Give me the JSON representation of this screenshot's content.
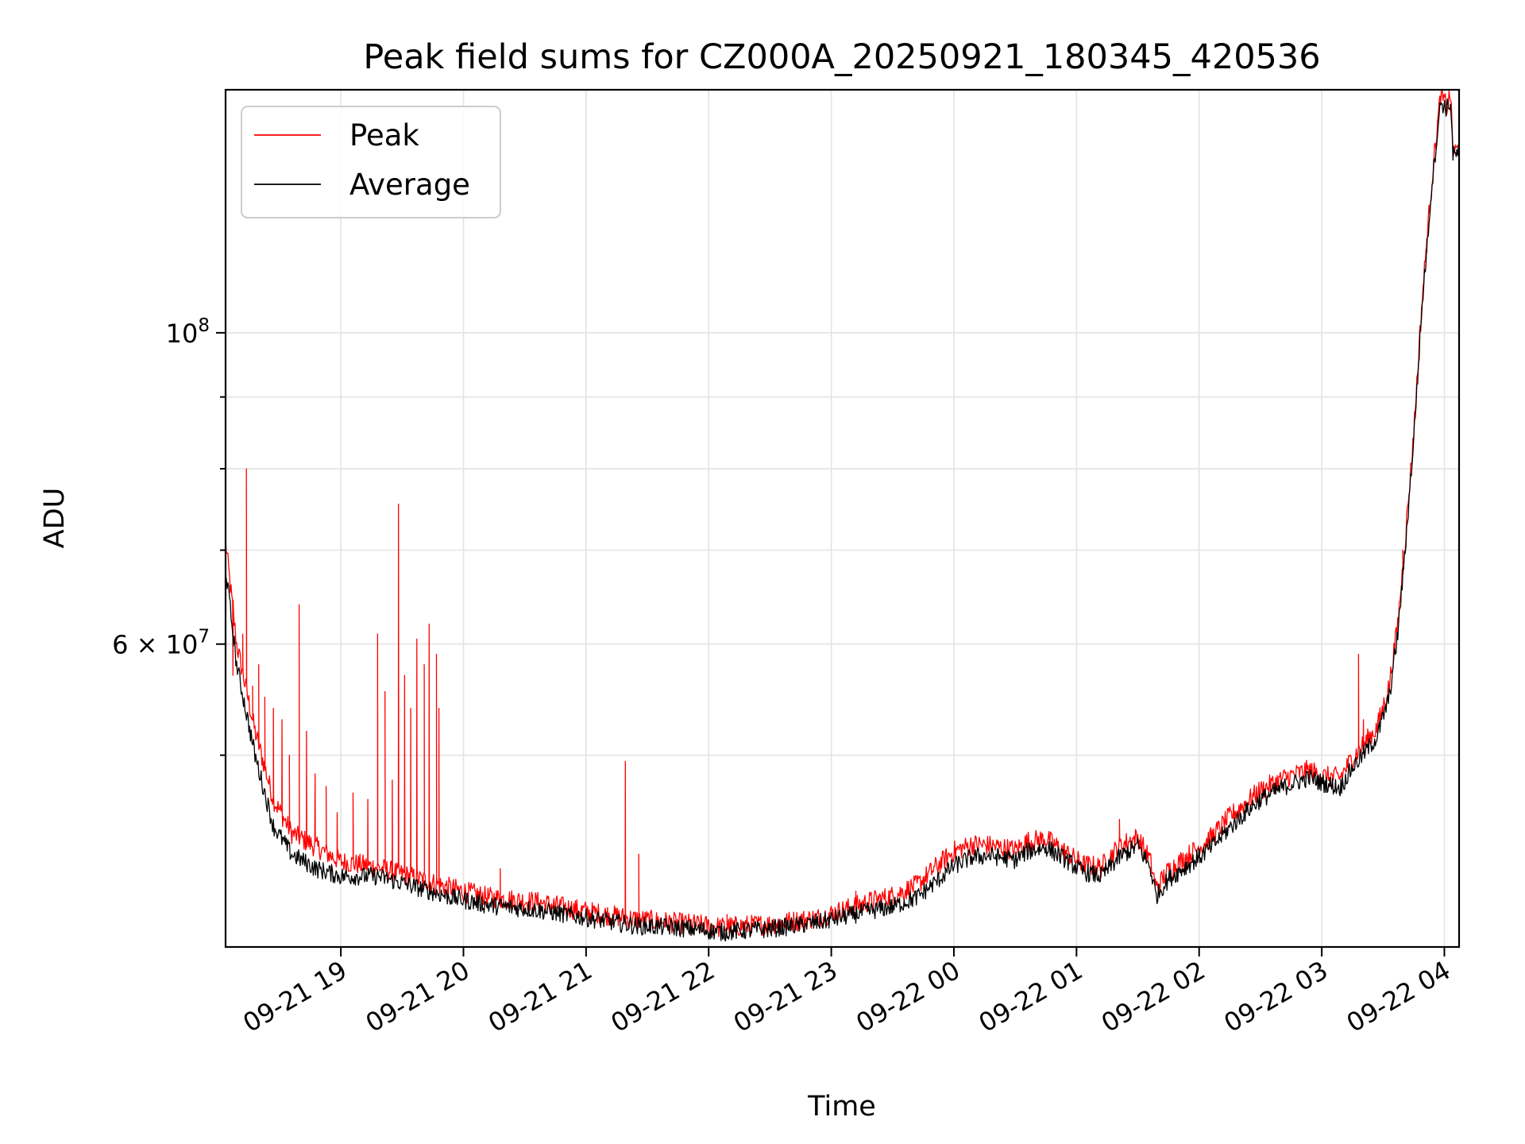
{
  "chart_data": {
    "type": "line",
    "title": "Peak field sums for CZ000A_20250921_180345_420536",
    "xlabel": "Time",
    "ylabel": "ADU",
    "yscale": "log",
    "grid": true,
    "legend_position": "upper-left",
    "xlim_hours_since_0921_1800": [
      0.06,
      10.12
    ],
    "ylim": [
      36500000,
      149000000
    ],
    "x_ticks": [
      {
        "value": 1,
        "label": "09-21 19"
      },
      {
        "value": 2,
        "label": "09-21 20"
      },
      {
        "value": 3,
        "label": "09-21 21"
      },
      {
        "value": 4,
        "label": "09-21 22"
      },
      {
        "value": 5,
        "label": "09-21 23"
      },
      {
        "value": 6,
        "label": "09-22 00"
      },
      {
        "value": 7,
        "label": "09-22 01"
      },
      {
        "value": 8,
        "label": "09-22 02"
      },
      {
        "value": 9,
        "label": "09-22 03"
      },
      {
        "value": 10,
        "label": "09-22 04"
      }
    ],
    "y_major_ticks": [
      {
        "value": 100000000,
        "base": "10",
        "exp": "8"
      },
      {
        "value": 60000000,
        "base": "6 × 10",
        "exp": "7"
      }
    ],
    "y_minor_ticks": [
      50000000,
      70000000,
      80000000,
      90000000
    ],
    "series": [
      {
        "name": "Average",
        "color": "#000000",
        "x": [
          0.06,
          0.15,
          0.3,
          0.45,
          0.6,
          0.8,
          1.0,
          1.3,
          1.6,
          1.9,
          2.2,
          2.6,
          3.0,
          3.4,
          3.7,
          4.0,
          4.1,
          4.5,
          4.9,
          5.3,
          5.5,
          5.7,
          5.85,
          6.0,
          6.15,
          6.3,
          6.5,
          6.6,
          6.75,
          6.9,
          7.05,
          7.2,
          7.35,
          7.5,
          7.6,
          7.65,
          7.75,
          8.0,
          8.1,
          8.25,
          8.4,
          8.5,
          8.7,
          8.9,
          9.0,
          9.15,
          9.25,
          9.35,
          9.45,
          9.55,
          9.62,
          9.68,
          9.75,
          9.82,
          9.9,
          9.97,
          10.02,
          10.05,
          10.07,
          10.09,
          10.12
        ],
        "y": [
          68000000,
          58000000,
          50000000,
          44500000,
          42500000,
          41500000,
          41000000,
          41000000,
          40300000,
          39600000,
          39100000,
          38800000,
          38300000,
          37800000,
          37700000,
          37500000,
          37400000,
          37600000,
          38000000,
          38700000,
          39000000,
          39600000,
          40600000,
          41700000,
          42300000,
          42400000,
          42100000,
          42700000,
          43000000,
          42200000,
          41300000,
          41000000,
          42300000,
          43100000,
          41600000,
          39700000,
          40800000,
          42300000,
          43000000,
          44400000,
          45700000,
          46500000,
          47500000,
          48200000,
          47800000,
          47400000,
          49000000,
          50200000,
          51500000,
          55000000,
          61000000,
          70000000,
          84000000,
          105000000,
          128000000,
          146000000,
          144500000,
          146000000,
          134000000,
          133800000,
          134500000
        ]
      },
      {
        "name": "Peak",
        "color": "#ff0000",
        "x": [
          0.06,
          0.15,
          0.3,
          0.45,
          0.6,
          0.8,
          1.0,
          1.3,
          1.6,
          1.9,
          2.2,
          2.6,
          3.0,
          3.4,
          3.7,
          4.0,
          4.1,
          4.5,
          4.9,
          5.3,
          5.5,
          5.7,
          5.85,
          6.0,
          6.15,
          6.3,
          6.5,
          6.6,
          6.75,
          6.9,
          7.05,
          7.2,
          7.35,
          7.5,
          7.6,
          7.65,
          7.75,
          8.0,
          8.1,
          8.25,
          8.4,
          8.5,
          8.7,
          8.9,
          9.0,
          9.15,
          9.25,
          9.35,
          9.45,
          9.55,
          9.62,
          9.68,
          9.75,
          9.82,
          9.9,
          9.97,
          10.02,
          10.05,
          10.07,
          10.09,
          10.12
        ],
        "y": [
          71000000,
          60000000,
          52000000,
          46500000,
          44000000,
          43000000,
          42000000,
          41600000,
          40900000,
          40200000,
          39600000,
          39300000,
          38700000,
          38200000,
          38000000,
          37800000,
          37700000,
          37900000,
          38300000,
          39300000,
          39700000,
          40400000,
          41600000,
          42700000,
          43200000,
          43100000,
          42800000,
          43400000,
          43600000,
          42700000,
          41800000,
          41600000,
          43100000,
          43700000,
          42100000,
          40200000,
          41400000,
          43000000,
          43700000,
          45200000,
          46400000,
          47200000,
          48200000,
          48800000,
          48300000,
          48200000,
          49800000,
          51000000,
          52300000,
          56000000,
          62000000,
          71000000,
          85000000,
          106000000,
          129000000,
          148000000,
          145000000,
          148000000,
          135000000,
          134600000,
          135500000
        ]
      }
    ],
    "peak_spikes": [
      {
        "x": 0.12,
        "y": 57000000
      },
      {
        "x": 0.2,
        "y": 61000000
      },
      {
        "x": 0.23,
        "y": 80000000
      },
      {
        "x": 0.28,
        "y": 56000000
      },
      {
        "x": 0.33,
        "y": 58000000
      },
      {
        "x": 0.38,
        "y": 55000000
      },
      {
        "x": 0.45,
        "y": 54000000
      },
      {
        "x": 0.52,
        "y": 53000000
      },
      {
        "x": 0.58,
        "y": 50000000
      },
      {
        "x": 0.66,
        "y": 64000000
      },
      {
        "x": 0.72,
        "y": 52000000
      },
      {
        "x": 0.79,
        "y": 48500000
      },
      {
        "x": 0.88,
        "y": 47500000
      },
      {
        "x": 0.97,
        "y": 45500000
      },
      {
        "x": 1.1,
        "y": 47000000
      },
      {
        "x": 1.22,
        "y": 46500000
      },
      {
        "x": 1.3,
        "y": 61000000
      },
      {
        "x": 1.36,
        "y": 55500000
      },
      {
        "x": 1.42,
        "y": 48000000
      },
      {
        "x": 1.47,
        "y": 75500000
      },
      {
        "x": 1.52,
        "y": 57000000
      },
      {
        "x": 1.57,
        "y": 54000000
      },
      {
        "x": 1.62,
        "y": 60500000
      },
      {
        "x": 1.68,
        "y": 58000000
      },
      {
        "x": 1.72,
        "y": 62000000
      },
      {
        "x": 1.78,
        "y": 59000000
      },
      {
        "x": 1.8,
        "y": 54000000
      },
      {
        "x": 2.3,
        "y": 41500000
      },
      {
        "x": 3.32,
        "y": 49500000
      },
      {
        "x": 3.43,
        "y": 42500000
      },
      {
        "x": 4.15,
        "y": 38500000
      },
      {
        "x": 5.2,
        "y": 40000000
      },
      {
        "x": 7.35,
        "y": 45000000
      },
      {
        "x": 9.3,
        "y": 59000000
      },
      {
        "x": 9.34,
        "y": 53000000
      },
      {
        "x": 9.66,
        "y": 70000000
      }
    ]
  }
}
